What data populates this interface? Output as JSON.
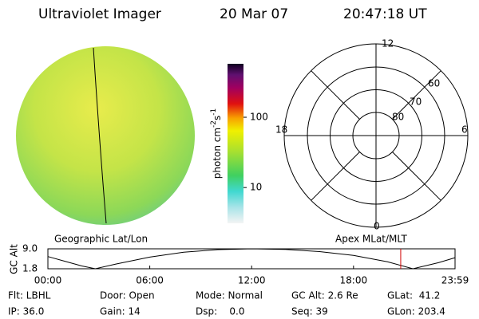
{
  "header": {
    "instrument": "Ultraviolet Imager",
    "date": "20 Mar 07",
    "time": "20:47:18 UT"
  },
  "colorbar": {
    "label": [
      "photon cm",
      "-2",
      "s",
      "-1"
    ],
    "log": true,
    "clim": [
      3.1,
      576
    ],
    "ticks": [
      10,
      100
    ]
  },
  "polar": {
    "mlt_labels": [
      "12",
      "6",
      "0",
      "18"
    ],
    "lat_labels": [
      "60",
      "70",
      "80"
    ]
  },
  "timeline": {
    "left_title": "Geographic Lat/Lon",
    "right_title": "Apex MLat/MLT",
    "ylabel": "GC Alt",
    "ylim": [
      1.8,
      9.0
    ],
    "yticks": [
      {
        "value": 9.0,
        "label": "9.0"
      },
      {
        "value": 1.8,
        "label": "1.8"
      }
    ],
    "xlim": [
      0,
      23.98
    ],
    "xticks": [
      {
        "value": 0,
        "label": "00:00"
      },
      {
        "value": 6,
        "label": "06:00"
      },
      {
        "value": 12,
        "label": "12:00"
      },
      {
        "value": 18,
        "label": "18:00"
      },
      {
        "value": 23.98,
        "label": "23:59"
      }
    ],
    "hours": [
      0,
      1,
      2,
      2.8,
      4,
      6,
      8,
      10,
      12,
      14,
      16,
      18,
      20,
      21.5,
      23,
      23.98
    ],
    "altitude": [
      6.2,
      4.5,
      2.8,
      1.8,
      3.5,
      6,
      7.8,
      8.7,
      9.0,
      8.8,
      8,
      6.6,
      4.3,
      1.8,
      4,
      5.8
    ],
    "current_hour": 20.78,
    "current_color": "#d00000"
  },
  "info": {
    "rows": [
      [
        "Flt: LBHL",
        "Door: Open",
        "Mode: Normal",
        "GC Alt: 2.6 Re",
        "GLat:  41.2"
      ],
      [
        "IP: 36.0",
        "Gain: 14",
        "Dsp:    0.0",
        "Seq: 39",
        "GLon: 203.4"
      ]
    ]
  }
}
